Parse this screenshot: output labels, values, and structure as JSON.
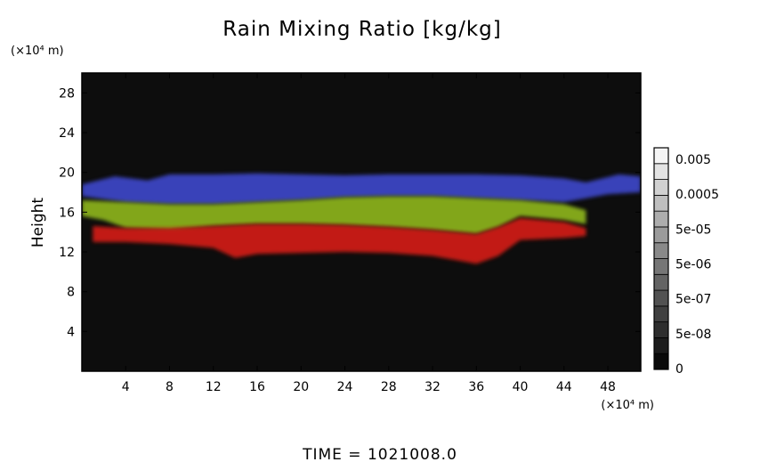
{
  "chart_data": {
    "type": "heatmap",
    "title": "Rain Mixing Ratio [kg/kg]",
    "xlabel": "",
    "ylabel": "Height",
    "x_unit": "(×10⁴ m)",
    "y_unit": "(×10⁴ m)",
    "xlim": [
      0,
      51
    ],
    "ylim": [
      0,
      30
    ],
    "x_ticks": [
      4,
      8,
      12,
      16,
      20,
      24,
      28,
      32,
      36,
      40,
      44,
      48
    ],
    "y_ticks": [
      4,
      8,
      12,
      16,
      20,
      24,
      28
    ],
    "colorbar": {
      "labels": [
        "0.005",
        "0.0005",
        "5e-05",
        "5e-06",
        "5e-07",
        "5e-08",
        "0"
      ],
      "levels": 14
    },
    "bands": [
      {
        "name_color": "blue",
        "color": "#3c46c8",
        "top": [
          [
            0,
            18.8
          ],
          [
            3,
            19.6
          ],
          [
            6,
            19.2
          ],
          [
            8,
            19.8
          ],
          [
            12,
            19.8
          ],
          [
            16,
            19.9
          ],
          [
            20,
            19.8
          ],
          [
            24,
            19.7
          ],
          [
            28,
            19.8
          ],
          [
            32,
            19.8
          ],
          [
            36,
            19.8
          ],
          [
            40,
            19.7
          ],
          [
            44,
            19.4
          ],
          [
            46,
            19.0
          ],
          [
            49,
            19.8
          ],
          [
            51,
            19.6
          ]
        ],
        "bottom": [
          [
            0,
            17.6
          ],
          [
            4,
            17.0
          ],
          [
            8,
            16.8
          ],
          [
            12,
            16.8
          ],
          [
            16,
            17.0
          ],
          [
            20,
            17.2
          ],
          [
            24,
            17.5
          ],
          [
            28,
            17.6
          ],
          [
            32,
            17.6
          ],
          [
            36,
            17.4
          ],
          [
            40,
            17.2
          ],
          [
            44,
            17.0
          ],
          [
            46,
            17.4
          ],
          [
            48,
            17.8
          ],
          [
            51,
            18.0
          ]
        ]
      },
      {
        "name_color": "yellow-green",
        "color": "#8cb41e",
        "top": [
          [
            0,
            17.2
          ],
          [
            4,
            17.0
          ],
          [
            8,
            16.8
          ],
          [
            12,
            16.8
          ],
          [
            16,
            17.0
          ],
          [
            20,
            17.2
          ],
          [
            24,
            17.5
          ],
          [
            28,
            17.6
          ],
          [
            32,
            17.6
          ],
          [
            36,
            17.4
          ],
          [
            40,
            17.2
          ],
          [
            44,
            16.8
          ],
          [
            46,
            16.2
          ]
        ],
        "bottom": [
          [
            0,
            15.6
          ],
          [
            2,
            15.2
          ],
          [
            4,
            14.4
          ],
          [
            8,
            14.2
          ],
          [
            12,
            14.6
          ],
          [
            16,
            14.8
          ],
          [
            20,
            14.8
          ],
          [
            24,
            14.7
          ],
          [
            28,
            14.5
          ],
          [
            32,
            14.2
          ],
          [
            36,
            13.8
          ],
          [
            38,
            14.5
          ],
          [
            40,
            15.6
          ],
          [
            44,
            15.2
          ],
          [
            46,
            14.8
          ]
        ]
      },
      {
        "name_color": "red",
        "color": "#d21e14",
        "top": [
          [
            1,
            14.6
          ],
          [
            4,
            14.4
          ],
          [
            8,
            14.4
          ],
          [
            12,
            14.6
          ],
          [
            16,
            14.8
          ],
          [
            20,
            14.8
          ],
          [
            24,
            14.7
          ],
          [
            28,
            14.5
          ],
          [
            32,
            14.2
          ],
          [
            36,
            13.8
          ],
          [
            38,
            14.5
          ],
          [
            40,
            15.4
          ],
          [
            44,
            15.0
          ],
          [
            46,
            14.4
          ]
        ],
        "bottom": [
          [
            1,
            13.0
          ],
          [
            4,
            13.0
          ],
          [
            8,
            12.8
          ],
          [
            12,
            12.4
          ],
          [
            14,
            11.4
          ],
          [
            16,
            11.8
          ],
          [
            20,
            11.9
          ],
          [
            24,
            12.0
          ],
          [
            28,
            11.9
          ],
          [
            32,
            11.6
          ],
          [
            36,
            10.8
          ],
          [
            38,
            11.6
          ],
          [
            40,
            13.2
          ],
          [
            44,
            13.4
          ],
          [
            46,
            13.6
          ]
        ]
      }
    ]
  },
  "footer": {
    "time_text": "TIME  =  1021008.0"
  }
}
